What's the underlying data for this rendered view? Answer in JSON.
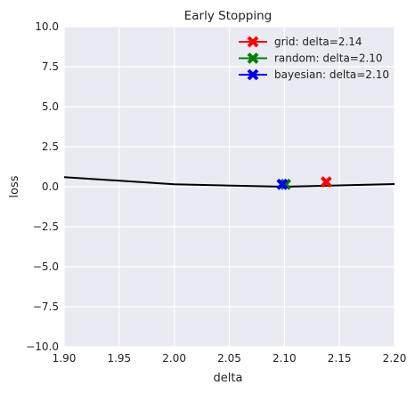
{
  "chart_data": {
    "type": "line",
    "title": "Early Stopping",
    "xlabel": "delta",
    "ylabel": "loss",
    "xlim": [
      1.9,
      2.2
    ],
    "ylim": [
      -10.0,
      10.0
    ],
    "xticks": [
      "1.90",
      "1.95",
      "2.00",
      "2.05",
      "2.10",
      "2.15",
      "2.20"
    ],
    "yticks": [
      "−10.0",
      "−7.5",
      "−5.0",
      "−2.5",
      "0.0",
      "2.5",
      "5.0",
      "7.5",
      "10.0"
    ],
    "grid": true,
    "legend_position": "top-right",
    "line": {
      "color": "#000000",
      "x": [
        1.9,
        2.0,
        2.1,
        2.2
      ],
      "y": [
        0.6,
        0.15,
        0.0,
        0.17
      ]
    },
    "markers": [
      {
        "label": "grid: delta=2.14",
        "x": 2.138,
        "y": 0.3,
        "color": "#ff0000"
      },
      {
        "label": "random: delta=2.10",
        "x": 2.101,
        "y": 0.15,
        "color": "#008000"
      },
      {
        "label": "bayesian: delta=2.10",
        "x": 2.098,
        "y": 0.15,
        "color": "#0000ff"
      }
    ],
    "colors": {
      "plot_background": "#eaeaf2",
      "grid": "#ffffff"
    }
  }
}
